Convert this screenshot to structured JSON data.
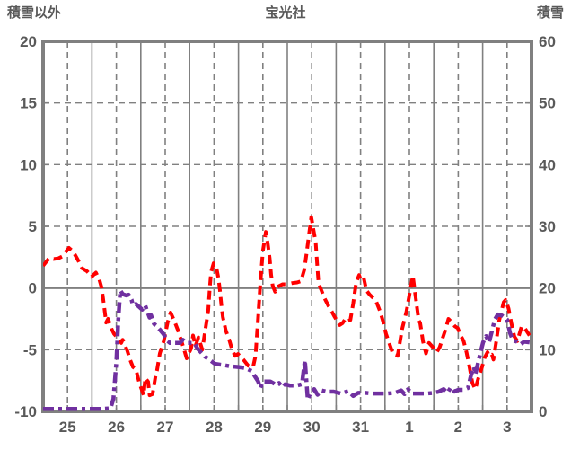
{
  "header": {
    "left_axis_title": "積雪以外",
    "chart_title": "宝光社",
    "right_axis_title": "積雪"
  },
  "colors": {
    "grid": "#808080",
    "text": "#595959",
    "temperature_series": "#ff0000",
    "snow_series": "#7030a0",
    "background": "#ffffff"
  },
  "chart_data": {
    "type": "line",
    "title": "宝光社",
    "grid": {
      "vertical_solid": "day boundaries",
      "vertical_dashed": "day midpoints",
      "horizontal_dashed": [
        15,
        10,
        5,
        -5
      ],
      "zero_line_solid": true
    },
    "left_axis": {
      "label": "積雪以外",
      "min": -10,
      "max": 20,
      "ticks": [
        "20",
        "15",
        "10",
        "5",
        "0",
        "-5",
        "-10"
      ]
    },
    "right_axis": {
      "label": "積雪",
      "min": 0,
      "max": 60,
      "ticks": [
        "60",
        "50",
        "40",
        "30",
        "20",
        "10",
        "0"
      ]
    },
    "x_axis": {
      "labels": [
        "25",
        "26",
        "27",
        "28",
        "29",
        "30",
        "31",
        "1",
        "2",
        "3"
      ],
      "days": 10,
      "ticks_per_day": 2
    },
    "series": [
      {
        "name": "積雪以外",
        "axis": "left",
        "color": "#ff0000",
        "dash": "10 6",
        "width": 4,
        "points": [
          [
            0,
            1.8
          ],
          [
            0.06,
            2.1
          ],
          [
            0.13,
            2.45
          ],
          [
            0.22,
            2.35
          ],
          [
            0.31,
            2.4
          ],
          [
            0.39,
            2.55
          ],
          [
            0.46,
            2.9
          ],
          [
            0.53,
            3.25
          ],
          [
            0.59,
            3.05
          ],
          [
            0.63,
            2.85
          ],
          [
            0.71,
            2.3
          ],
          [
            0.8,
            1.6
          ],
          [
            0.9,
            1.35
          ],
          [
            0.96,
            1.1
          ],
          [
            0.99,
            0.9
          ],
          [
            1.08,
            1.25
          ],
          [
            1.15,
            0.7
          ],
          [
            1.2,
            0
          ],
          [
            1.25,
            -1.5
          ],
          [
            1.29,
            -2.8
          ],
          [
            1.33,
            -2.5
          ],
          [
            1.4,
            -3.3
          ],
          [
            1.45,
            -3.7
          ],
          [
            1.55,
            -4.15
          ],
          [
            1.6,
            -4.45
          ],
          [
            1.63,
            -4.2
          ],
          [
            1.72,
            -5.05
          ],
          [
            1.78,
            -5.8
          ],
          [
            1.84,
            -6.4
          ],
          [
            1.9,
            -6.6
          ],
          [
            1.97,
            -7.7
          ],
          [
            2.06,
            -8.7
          ],
          [
            2.09,
            -7.3
          ],
          [
            2.15,
            -7.6
          ],
          [
            2.18,
            -8.7
          ],
          [
            2.24,
            -8.6
          ],
          [
            2.3,
            -7.2
          ],
          [
            2.33,
            -6.7
          ],
          [
            2.39,
            -5.3
          ],
          [
            2.47,
            -4.3
          ],
          [
            2.55,
            -2.8
          ],
          [
            2.61,
            -2
          ],
          [
            2.68,
            -2.6
          ],
          [
            2.76,
            -3.4
          ],
          [
            2.88,
            -4.9
          ],
          [
            2.94,
            -5.7
          ],
          [
            3.03,
            -4.9
          ],
          [
            3.07,
            -3.85
          ],
          [
            3.12,
            -4.7
          ],
          [
            3.18,
            -4
          ],
          [
            3.26,
            -5
          ],
          [
            3.38,
            -1.85
          ],
          [
            3.41,
            -0.15
          ],
          [
            3.44,
            1.3
          ],
          [
            3.49,
            2
          ],
          [
            3.54,
            1.8
          ],
          [
            3.59,
            0.8
          ],
          [
            3.62,
            -0.15
          ],
          [
            3.65,
            -1.4
          ],
          [
            3.68,
            -2.35
          ],
          [
            3.74,
            -3.45
          ],
          [
            3.81,
            -4.2
          ],
          [
            3.87,
            -5
          ],
          [
            3.93,
            -5.5
          ],
          [
            3.99,
            -5.35
          ],
          [
            4.1,
            -5.8
          ],
          [
            4.2,
            -6.3
          ],
          [
            4.3,
            -6.4
          ],
          [
            4.35,
            -5.5
          ],
          [
            4.4,
            -2.5
          ],
          [
            4.45,
            0.5
          ],
          [
            4.5,
            3
          ],
          [
            4.56,
            4.55
          ],
          [
            4.6,
            3.6
          ],
          [
            4.64,
            2.4
          ],
          [
            4.67,
            1.05
          ],
          [
            4.7,
            0.2
          ],
          [
            4.75,
            -0.3
          ],
          [
            4.8,
            0.1
          ],
          [
            4.9,
            0.3
          ],
          [
            5,
            0.3
          ],
          [
            5.1,
            0.4
          ],
          [
            5.2,
            0.45
          ],
          [
            5.28,
            0.55
          ],
          [
            5.35,
            1.5
          ],
          [
            5.4,
            3
          ],
          [
            5.49,
            5.75
          ],
          [
            5.58,
            3.7
          ],
          [
            5.61,
            2
          ],
          [
            5.64,
            0.4
          ],
          [
            5.76,
            -0.8
          ],
          [
            5.85,
            -1.5
          ],
          [
            5.91,
            -1.9
          ],
          [
            5.97,
            -2.35
          ],
          [
            6.07,
            -3
          ],
          [
            6.13,
            -2.85
          ],
          [
            6.19,
            -2.5
          ],
          [
            6.23,
            -2.7
          ],
          [
            6.29,
            -2.6
          ],
          [
            6.35,
            -1.25
          ],
          [
            6.41,
            0.45
          ],
          [
            6.47,
            1.05
          ],
          [
            6.5,
            0.7
          ],
          [
            6.56,
            0.9
          ],
          [
            6.62,
            -0.2
          ],
          [
            6.69,
            -0.55
          ],
          [
            6.81,
            -1
          ],
          [
            6.9,
            -1.9
          ],
          [
            6.96,
            -2.7
          ],
          [
            7.02,
            -3.7
          ],
          [
            7.08,
            -4.4
          ],
          [
            7.17,
            -5.4
          ],
          [
            7.26,
            -5.5
          ],
          [
            7.35,
            -3.35
          ],
          [
            7.44,
            -1.9
          ],
          [
            7.57,
            1
          ],
          [
            7.69,
            -2.6
          ],
          [
            7.72,
            -2.85
          ],
          [
            7.78,
            -4.35
          ],
          [
            7.84,
            -5.3
          ],
          [
            7.9,
            -4.45
          ],
          [
            7.96,
            -4.7
          ],
          [
            8.06,
            -5.2
          ],
          [
            8.12,
            -4.8
          ],
          [
            8.24,
            -3.35
          ],
          [
            8.3,
            -2.5
          ],
          [
            8.36,
            -2.75
          ],
          [
            8.43,
            -3.1
          ],
          [
            8.49,
            -3.25
          ],
          [
            8.55,
            -3.85
          ],
          [
            8.61,
            -4.3
          ],
          [
            8.67,
            -5.2
          ],
          [
            8.73,
            -6.4
          ],
          [
            8.79,
            -7.7
          ],
          [
            8.85,
            -8.2
          ],
          [
            8.92,
            -7.2
          ],
          [
            8.98,
            -6.5
          ],
          [
            9.04,
            -5.65
          ],
          [
            9.1,
            -5.2
          ],
          [
            9.13,
            -5.5
          ],
          [
            9.19,
            -5.4
          ],
          [
            9.22,
            -5.8
          ],
          [
            9.28,
            -4.3
          ],
          [
            9.34,
            -2.6
          ],
          [
            9.43,
            -1.15
          ],
          [
            9.47,
            -0.97
          ],
          [
            9.53,
            -1.65
          ],
          [
            9.59,
            -2.9
          ],
          [
            9.65,
            -3.95
          ],
          [
            9.71,
            -4.3
          ],
          [
            9.8,
            -3.1
          ],
          [
            9.86,
            -3.25
          ],
          [
            9.96,
            -3.85
          ]
        ]
      },
      {
        "name": "積雪",
        "axis": "right",
        "color": "#7030a0",
        "dash": "12 5 4 5",
        "width": 4.5,
        "points": [
          [
            0,
            0.4
          ],
          [
            0.3,
            0.4
          ],
          [
            0.6,
            0.4
          ],
          [
            0.9,
            0.4
          ],
          [
            1.2,
            0.4
          ],
          [
            1.38,
            0.5
          ],
          [
            1.44,
            2
          ],
          [
            1.5,
            8
          ],
          [
            1.54,
            15
          ],
          [
            1.58,
            19.6
          ],
          [
            1.63,
            19
          ],
          [
            1.7,
            18.8
          ],
          [
            1.75,
            18.9
          ],
          [
            1.81,
            18.1
          ],
          [
            1.84,
            17.2
          ],
          [
            1.9,
            17.4
          ],
          [
            1.96,
            17
          ],
          [
            2.03,
            16.5
          ],
          [
            2.09,
            17.2
          ],
          [
            2.12,
            16.5
          ],
          [
            2.18,
            15.2
          ],
          [
            2.21,
            15.6
          ],
          [
            2.27,
            14.2
          ],
          [
            2.33,
            13.8
          ],
          [
            2.46,
            12.6
          ],
          [
            2.55,
            11.4
          ],
          [
            2.6,
            11.1
          ],
          [
            2.8,
            11.1
          ],
          [
            2.86,
            11.6
          ],
          [
            2.95,
            11.1
          ],
          [
            3.1,
            11.1
          ],
          [
            3.16,
            10.2
          ],
          [
            3.31,
            8.9
          ],
          [
            3.4,
            8.4
          ],
          [
            3.52,
            7.7
          ],
          [
            3.7,
            7.5
          ],
          [
            3.85,
            7.3
          ],
          [
            4,
            7.2
          ],
          [
            4.15,
            7
          ],
          [
            4.28,
            6.5
          ],
          [
            4.33,
            5.75
          ],
          [
            4.4,
            4.9
          ],
          [
            4.45,
            3.8
          ],
          [
            4.5,
            4.85
          ],
          [
            4.65,
            4.85
          ],
          [
            4.78,
            4.3
          ],
          [
            4.83,
            4.6
          ],
          [
            4.9,
            3.9
          ],
          [
            4.96,
            4.4
          ],
          [
            5.05,
            4.2
          ],
          [
            5.2,
            4.2
          ],
          [
            5.3,
            4.4
          ],
          [
            5.36,
            8.3
          ],
          [
            5.42,
            1.9
          ],
          [
            5.48,
            3.1
          ],
          [
            5.55,
            3.6
          ],
          [
            5.62,
            2.7
          ],
          [
            5.7,
            3.4
          ],
          [
            5.8,
            3.2
          ],
          [
            5.95,
            3.2
          ],
          [
            6.1,
            2.9
          ],
          [
            6.25,
            3.3
          ],
          [
            6.35,
            2.5
          ],
          [
            6.45,
            3
          ],
          [
            6.6,
            3
          ],
          [
            6.75,
            2.9
          ],
          [
            6.9,
            2.9
          ],
          [
            7.05,
            2.9
          ],
          [
            7.2,
            3
          ],
          [
            7.33,
            3.4
          ],
          [
            7.4,
            2.8
          ],
          [
            7.47,
            3.6
          ],
          [
            7.55,
            2.9
          ],
          [
            7.7,
            2.9
          ],
          [
            7.85,
            2.9
          ],
          [
            8,
            3
          ],
          [
            8.1,
            3.2
          ],
          [
            8.2,
            3.6
          ],
          [
            8.28,
            3
          ],
          [
            8.35,
            3.9
          ],
          [
            8.42,
            3.2
          ],
          [
            8.5,
            3.5
          ],
          [
            8.6,
            3.5
          ],
          [
            8.7,
            3.8
          ],
          [
            8.76,
            5.8
          ],
          [
            8.82,
            7.2
          ],
          [
            8.85,
            6
          ],
          [
            8.88,
            7
          ],
          [
            8.95,
            9.4
          ],
          [
            9.01,
            11.2
          ],
          [
            9.07,
            12.2
          ],
          [
            9.13,
            11.2
          ],
          [
            9.19,
            13
          ],
          [
            9.25,
            14.9
          ],
          [
            9.31,
            15.7
          ],
          [
            9.4,
            15.5
          ],
          [
            9.5,
            14.9
          ],
          [
            9.56,
            12.7
          ],
          [
            9.62,
            11.5
          ],
          [
            9.7,
            11.3
          ],
          [
            9.78,
            10.9
          ],
          [
            9.85,
            11.3
          ],
          [
            9.96,
            11.2
          ]
        ]
      }
    ]
  }
}
